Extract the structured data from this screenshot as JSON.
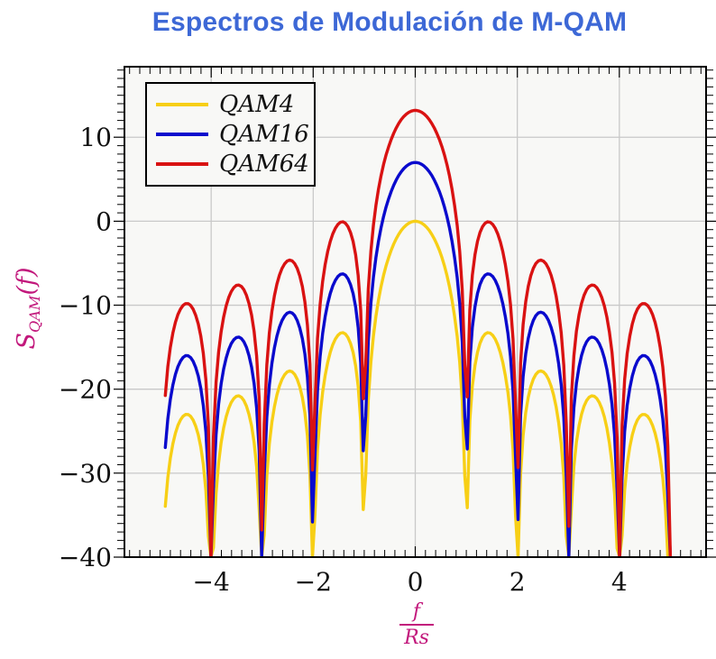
{
  "chart_data": {
    "type": "line",
    "title": "Espectros de Modulación de M-QAM",
    "xlabel": {
      "numerator": "f",
      "denominator": "Rs"
    },
    "ylabel": {
      "base": "S",
      "subscript": "QAM",
      "suffix": "(f)"
    },
    "xlim": [
      -5.7,
      5.7
    ],
    "ylim": [
      -40,
      18.4
    ],
    "x_ticks": [
      -4,
      -2,
      0,
      2,
      4
    ],
    "y_ticks": [
      10,
      0,
      -10,
      -20,
      -30,
      -40
    ],
    "x_minor_step": 0.2,
    "y_minor_step": 1,
    "grid": true,
    "legend_position": "top-left",
    "x_range": [
      -4.9,
      5.0
    ],
    "samples": 200,
    "function": "S_dB(f/Rs) = offset_dB + 20*log10(|sin(pi*x)/(pi*x)|), clipped below at -40 dB",
    "series": [
      {
        "name": "QAM4",
        "color": "#F7CF16",
        "offset_dB": 0,
        "peak_dB": 0
      },
      {
        "name": "QAM16",
        "color": "#0A0ACD",
        "offset_dB": 7.0,
        "peak_dB": 7.0
      },
      {
        "name": "QAM64",
        "color": "#D91212",
        "offset_dB": 13.2,
        "peak_dB": 13.2
      }
    ],
    "sidelobe_peaks": {
      "x": [
        -4.48,
        -3.47,
        -2.46,
        -1.43,
        0,
        1.43,
        2.46,
        3.47,
        4.48
      ],
      "QAM4_dB": [
        -23.0,
        -20.8,
        -17.8,
        -13.3,
        0,
        -13.3,
        -17.8,
        -20.8,
        -23.0
      ],
      "QAM16_dB": [
        -16.0,
        -13.8,
        -10.8,
        -6.3,
        7.0,
        -6.3,
        -10.8,
        -13.8,
        -16.0
      ],
      "QAM64_dB": [
        -9.8,
        -7.6,
        -4.6,
        -0.1,
        13.2,
        -0.1,
        -4.6,
        -7.6,
        -9.8
      ]
    },
    "nulls_x": [
      -4,
      -3,
      -2,
      -1,
      1,
      2,
      3,
      4,
      5
    ]
  },
  "colors": {
    "title": "#3D68D6",
    "axis_label": "#C2187C",
    "grid": "#C9C9C9",
    "frame": "#000000",
    "tick_label": "#111111",
    "plot_background": "#F8F8F6",
    "page_background": "#FFFFFF"
  }
}
